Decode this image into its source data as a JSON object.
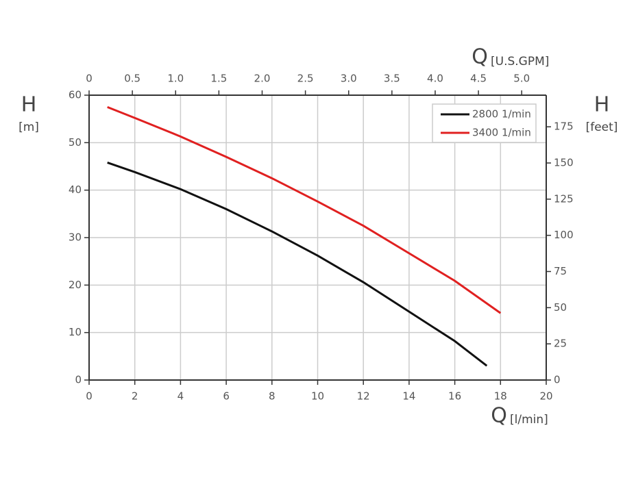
{
  "chart_data": {
    "type": "line",
    "x_label": {
      "symbol": "Q",
      "unit": "[l/min]"
    },
    "x2_label": {
      "symbol": "Q",
      "unit": "[U.S.GPM]"
    },
    "y_label": {
      "symbol": "H",
      "unit": "[m]"
    },
    "y2_label": {
      "symbol": "H",
      "unit": "[feet]"
    },
    "xlim": [
      0,
      20
    ],
    "xticks": [
      0,
      2,
      4,
      6,
      8,
      10,
      12,
      14,
      16,
      18,
      20
    ],
    "x2lim": [
      0,
      5.2834
    ],
    "x2ticks": [
      0,
      0.5,
      {
        "value": 1,
        "label": "1.0"
      },
      1.5,
      {
        "value": 2,
        "label": "2.0"
      },
      2.5,
      {
        "value": 3,
        "label": "3.0"
      },
      3.5,
      {
        "value": 4,
        "label": "4.0"
      },
      4.5,
      {
        "value": 5,
        "label": "5.0"
      }
    ],
    "ylim": [
      0,
      60
    ],
    "yticks": [
      0,
      10,
      20,
      30,
      40,
      50,
      60
    ],
    "y2lim": [
      0,
      196.85
    ],
    "y2ticks": [
      0,
      25,
      50,
      75,
      100,
      125,
      150,
      175
    ],
    "grid": true,
    "legend": "upper right",
    "series": [
      {
        "name": "2800 1/min",
        "color": "#111111",
        "x": [
          0.8,
          2,
          4,
          6,
          8,
          10,
          12,
          14,
          16,
          17.4
        ],
        "values": [
          45.8,
          43.8,
          40.2,
          36.0,
          31.3,
          26.2,
          20.6,
          14.4,
          8.2,
          3.0
        ]
      },
      {
        "name": "3400 1/min",
        "color": "#e02020",
        "x": [
          0.8,
          2,
          4,
          6,
          8,
          10,
          12,
          14,
          16,
          18
        ],
        "values": [
          57.5,
          55.2,
          51.3,
          47.0,
          42.5,
          37.6,
          32.5,
          26.7,
          20.9,
          14.1
        ]
      }
    ]
  }
}
